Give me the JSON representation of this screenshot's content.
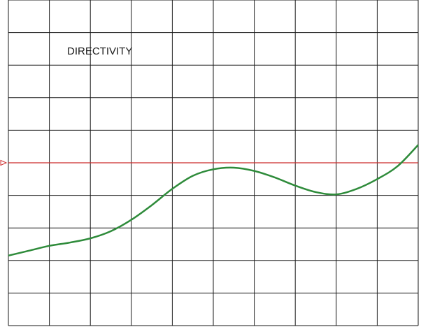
{
  "chart_data": {
    "type": "line",
    "title": "DIRECTIVITY",
    "xlabel": "",
    "ylabel": "",
    "grid": true,
    "grid_divisions": {
      "x": 10,
      "y": 10
    },
    "xlim": [
      0,
      10
    ],
    "ylim": [
      0,
      10
    ],
    "reference_line": {
      "y": 5,
      "color": "#cc2b2b",
      "marker": "triangle-left"
    },
    "series": [
      {
        "color": "#2e8b3a",
        "x": [
          0,
          0.5,
          1,
          1.5,
          2,
          2.5,
          3,
          3.5,
          4,
          4.5,
          5,
          5.5,
          6,
          6.5,
          7,
          7.5,
          8,
          8.5,
          9,
          9.5,
          10
        ],
        "y": [
          2.15,
          2.3,
          2.45,
          2.55,
          2.68,
          2.9,
          3.25,
          3.7,
          4.2,
          4.6,
          4.8,
          4.85,
          4.75,
          4.55,
          4.3,
          4.1,
          4.03,
          4.2,
          4.5,
          4.9,
          5.55
        ]
      }
    ]
  },
  "colors": {
    "grid": "#1a1a1a",
    "reference": "#cc2b2b",
    "series": "#2e8b3a",
    "background": "#ffffff"
  }
}
